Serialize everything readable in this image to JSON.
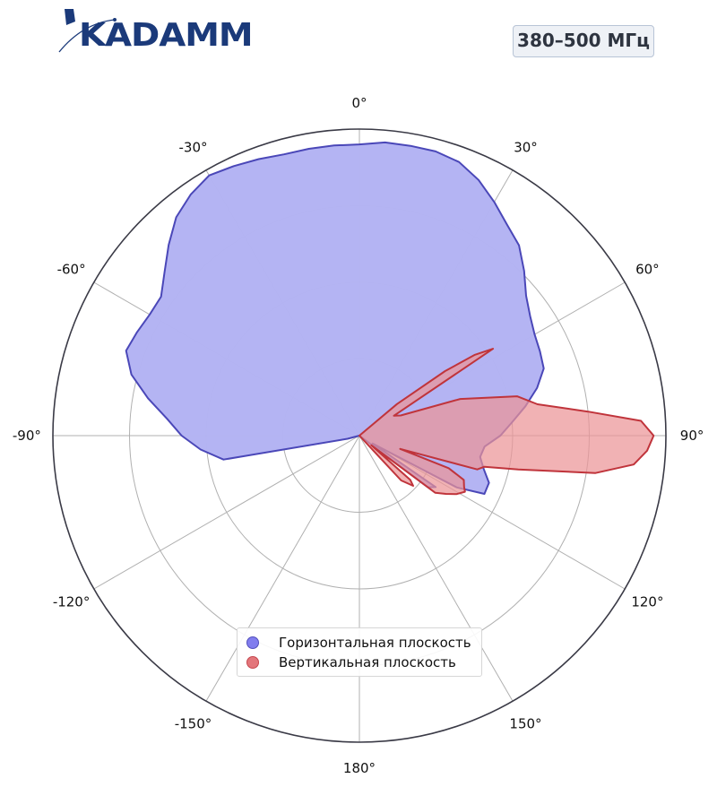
{
  "header": {
    "logo_text": "KADAMM",
    "frequency_badge": "380–500 МГц"
  },
  "colors": {
    "horizontal_fill": "#b3b3f3",
    "horizontal_stroke": "#4a47b8",
    "vertical_fill": "#eb9497",
    "vertical_stroke": "#c0343b",
    "logo": "#1b3a7a"
  },
  "chart_data": {
    "type": "polar",
    "title": "",
    "angle_unit": "degrees",
    "angle_zero": "top",
    "angle_direction": "clockwise",
    "radial_range": [
      0,
      1
    ],
    "radial_gridlines": [
      0.25,
      0.5,
      0.75,
      1.0
    ],
    "angle_ticks": [
      0,
      30,
      60,
      90,
      120,
      150,
      180,
      -150,
      -120,
      -90,
      -60,
      -30
    ],
    "angle_tick_labels": [
      "0°",
      "30°",
      "60°",
      "90°",
      "120°",
      "150°",
      "180°",
      "-150°",
      "-120°",
      "-90°",
      "-60°",
      "-30°"
    ],
    "grid": true,
    "legend_position": "bottom-center",
    "series": [
      {
        "name": "Горизонтальная плоскость",
        "color": "#4a47b8",
        "fill": "#b3b3f3",
        "angles": [
          -105,
          -100,
          -95,
          -90,
          -85,
          -80,
          -75,
          -70,
          -65,
          -60,
          -55,
          -50,
          -45,
          -40,
          -35,
          -30,
          -25,
          -20,
          -15,
          -10,
          -5,
          0,
          5,
          10,
          15,
          20,
          25,
          30,
          35,
          40,
          45,
          50,
          55,
          60,
          65,
          70,
          75,
          80,
          85,
          90,
          95,
          100,
          105,
          110,
          115,
          118,
          121,
          124,
          127,
          130
        ],
        "values": [
          0.04,
          0.45,
          0.52,
          0.58,
          0.63,
          0.7,
          0.77,
          0.81,
          0.8,
          0.79,
          0.79,
          0.83,
          0.88,
          0.93,
          0.96,
          0.98,
          0.97,
          0.96,
          0.95,
          0.95,
          0.95,
          0.95,
          0.96,
          0.96,
          0.96,
          0.95,
          0.92,
          0.88,
          0.84,
          0.81,
          0.76,
          0.71,
          0.68,
          0.66,
          0.65,
          0.64,
          0.6,
          0.55,
          0.5,
          0.46,
          0.41,
          0.4,
          0.42,
          0.45,
          0.45,
          0.36,
          0.05,
          0.3,
          0.28,
          0.0
        ]
      },
      {
        "name": "Вертикальная плоскость",
        "color": "#c0343b",
        "fill": "#eb9497",
        "angles": [
          0,
          50,
          53,
          55,
          57,
          60,
          64,
          70,
          76,
          80,
          84,
          87,
          90,
          93,
          96,
          99,
          102,
          104,
          106,
          108,
          110,
          113,
          116,
          118,
          121,
          124,
          127,
          129,
          131,
          133,
          137,
          145,
          180,
          270,
          330
        ],
        "values": [
          0.0,
          0.16,
          0.35,
          0.46,
          0.52,
          0.13,
          0.15,
          0.35,
          0.53,
          0.59,
          0.75,
          0.92,
          0.96,
          0.94,
          0.9,
          0.78,
          0.53,
          0.42,
          0.4,
          0.14,
          0.31,
          0.37,
          0.38,
          0.39,
          0.37,
          0.34,
          0.31,
          0.05,
          0.22,
          0.24,
          0.2,
          0.0,
          0.0,
          0.0,
          0.0
        ]
      }
    ]
  }
}
